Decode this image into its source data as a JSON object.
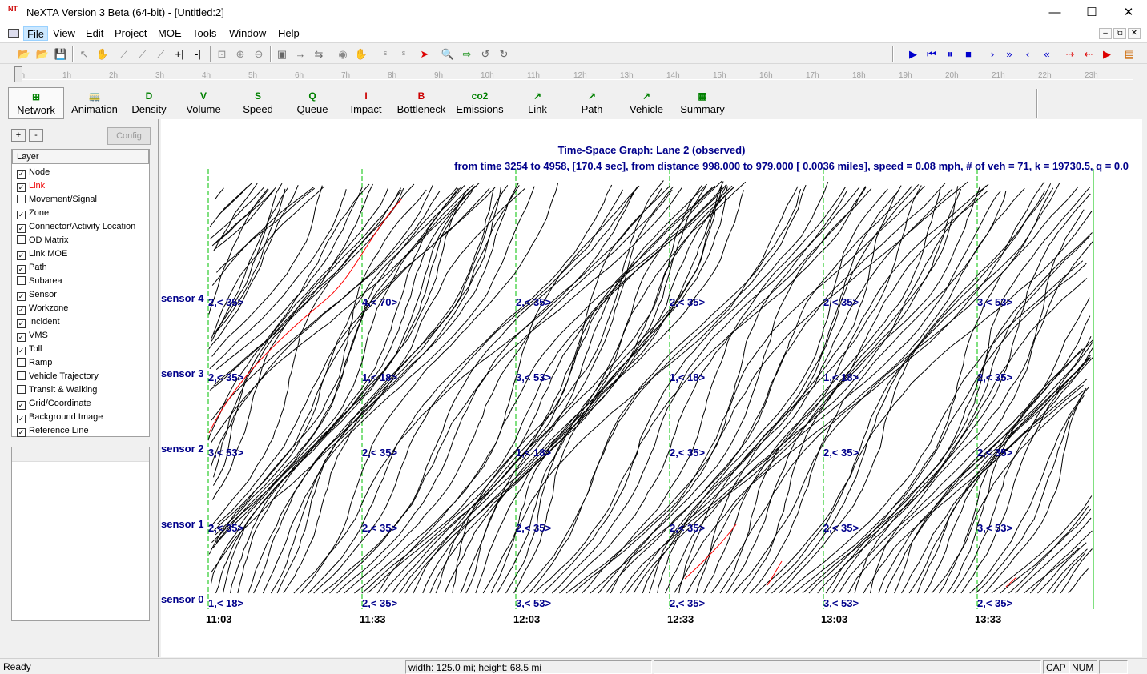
{
  "window": {
    "app_icon": "NT",
    "title": "NeXTA Version 3 Beta (64-bit) - [Untitled:2]",
    "minimize": "—",
    "maximize": "☐",
    "close": "✕"
  },
  "menu": [
    "File",
    "View",
    "Edit",
    "Project",
    "MOE",
    "Tools",
    "Window",
    "Help"
  ],
  "menu_active": "File",
  "timeline": {
    "ticks": [
      "0h",
      "1h",
      "2h",
      "3h",
      "4h",
      "5h",
      "6h",
      "7h",
      "8h",
      "9h",
      "10h",
      "11h",
      "12h",
      "13h",
      "14h",
      "15h",
      "16h",
      "17h",
      "18h",
      "19h",
      "20h",
      "21h",
      "22h",
      "23h"
    ]
  },
  "moe_tabs": [
    {
      "glyph": "⊞",
      "label": "Network",
      "color": "#008000"
    },
    {
      "glyph": "🚃",
      "label": "Animation",
      "color": "#008000"
    },
    {
      "glyph": "D",
      "label": "Density",
      "color": "#008000"
    },
    {
      "glyph": "V",
      "label": "Volume",
      "color": "#008000"
    },
    {
      "glyph": "S",
      "label": "Speed",
      "color": "#008000"
    },
    {
      "glyph": "Q",
      "label": "Queue",
      "color": "#008000"
    },
    {
      "glyph": "I",
      "label": "Impact",
      "color": "#cc0000"
    },
    {
      "glyph": "B",
      "label": "Bottleneck",
      "color": "#cc0000"
    },
    {
      "glyph": "co2",
      "label": "Emissions",
      "color": "#008000"
    },
    {
      "glyph": "↗",
      "label": "Link",
      "color": "#008000"
    },
    {
      "glyph": "↗",
      "label": "Path",
      "color": "#008000"
    },
    {
      "glyph": "↗",
      "label": "Vehicle",
      "color": "#008000"
    },
    {
      "glyph": "▦",
      "label": "Summary",
      "color": "#008000"
    }
  ],
  "left_panel": {
    "plus": "+",
    "minus": "-",
    "config": "Config",
    "layer_header": "Layer",
    "layers": [
      {
        "name": "Node",
        "checked": true
      },
      {
        "name": "Link",
        "checked": true,
        "highlight": true
      },
      {
        "name": "Movement/Signal",
        "checked": false
      },
      {
        "name": "Zone",
        "checked": true
      },
      {
        "name": "Connector/Activity Location",
        "checked": true
      },
      {
        "name": "OD Matrix",
        "checked": false
      },
      {
        "name": "Link MOE",
        "checked": true
      },
      {
        "name": "Path",
        "checked": true
      },
      {
        "name": "Subarea",
        "checked": false
      },
      {
        "name": "Sensor",
        "checked": true
      },
      {
        "name": "Workzone",
        "checked": true
      },
      {
        "name": "Incident",
        "checked": true
      },
      {
        "name": "VMS",
        "checked": true
      },
      {
        "name": "Toll",
        "checked": true
      },
      {
        "name": "Ramp",
        "checked": false
      },
      {
        "name": "Vehicle Trajectory",
        "checked": false
      },
      {
        "name": "Transit & Walking",
        "checked": false
      },
      {
        "name": "Grid/Coordinate",
        "checked": true
      },
      {
        "name": "Background Image",
        "checked": true
      },
      {
        "name": "Reference Line",
        "checked": true
      }
    ]
  },
  "graph": {
    "title": "Time-Space Graph: Lane 2 (observed)",
    "subtitle": "from time 3254 to 4958, [170.4 sec], from distance  998.000 to  979.000 [  0.0036 miles], speed =  0.08 mph, # of veh = 71, k = 19730.5, q =   0.0",
    "sensors": [
      "sensor 4",
      "sensor 3",
      "sensor 2",
      "sensor 1",
      "sensor 0"
    ],
    "times": [
      "11:03",
      "11:33",
      "12:03",
      "12:33",
      "13:03",
      "13:33"
    ],
    "cells": [
      [
        "2,< 35>",
        "4,< 70>",
        "2,< 35>",
        "2,< 35>",
        "2,< 35>",
        "3,< 53>"
      ],
      [
        "2,< 35>",
        "1,< 18>",
        "3,< 53>",
        "1,< 18>",
        "1,< 18>",
        "2,< 35>"
      ],
      [
        "3,< 53>",
        "2,< 35>",
        "1,< 18>",
        "2,< 35>",
        "2,< 35>",
        "2,< 35>"
      ],
      [
        "2,< 35>",
        "2,< 35>",
        "2,< 35>",
        "2,< 35>",
        "2,< 35>",
        "3,< 53>"
      ],
      [
        "1,< 18>",
        "2,< 35>",
        "3,< 53>",
        "2,< 35>",
        "3,< 53>",
        "2,< 35>"
      ]
    ],
    "trajectory_color": "#000000",
    "highlight_color": "#ff0000",
    "timeline_color": "#00c000",
    "label_color": "#00008b"
  },
  "status": {
    "ready": "Ready",
    "dimensions": "width: 125.0 mi; height: 68.5 mi",
    "cap": "CAP",
    "num": "NUM"
  }
}
